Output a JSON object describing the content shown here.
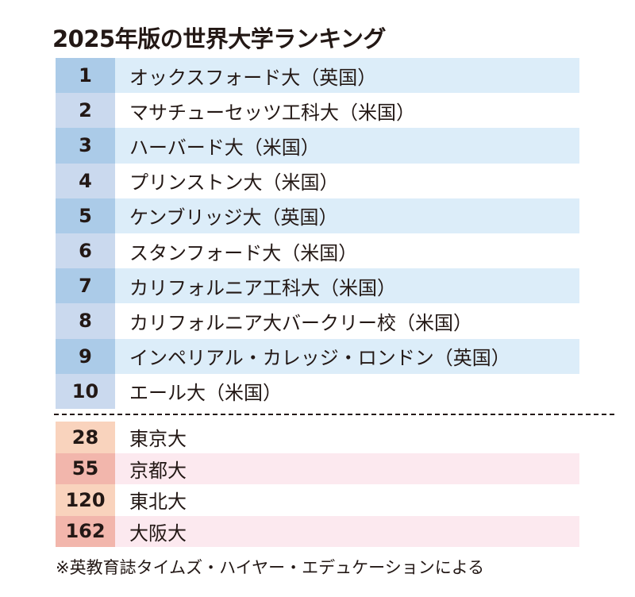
{
  "title": "2025年版の世界大学ランキング",
  "world": [
    {
      "rank": "1",
      "name": "オックスフォード大（英国）"
    },
    {
      "rank": "2",
      "name": "マサチューセッツ工科大（米国）"
    },
    {
      "rank": "3",
      "name": "ハーバード大（米国）"
    },
    {
      "rank": "4",
      "name": "プリンストン大（米国）"
    },
    {
      "rank": "5",
      "name": "ケンブリッジ大（英国）"
    },
    {
      "rank": "6",
      "name": "スタンフォード大（米国）"
    },
    {
      "rank": "7",
      "name": "カリフォルニア工科大（米国）"
    },
    {
      "rank": "8",
      "name": "カリフォルニア大バークリー校（米国）"
    },
    {
      "rank": "9",
      "name": "インペリアル・カレッジ・ロンドン（英国）"
    },
    {
      "rank": "10",
      "name": "エール大（米国）"
    }
  ],
  "japan": [
    {
      "rank": "28",
      "name": "東京大"
    },
    {
      "rank": "55",
      "name": "京都大"
    },
    {
      "rank": "120",
      "name": "東北大"
    },
    {
      "rank": "162",
      "name": "大阪大"
    }
  ],
  "note": "※英教育誌タイムズ・ハイヤー・エデュケーションによる"
}
